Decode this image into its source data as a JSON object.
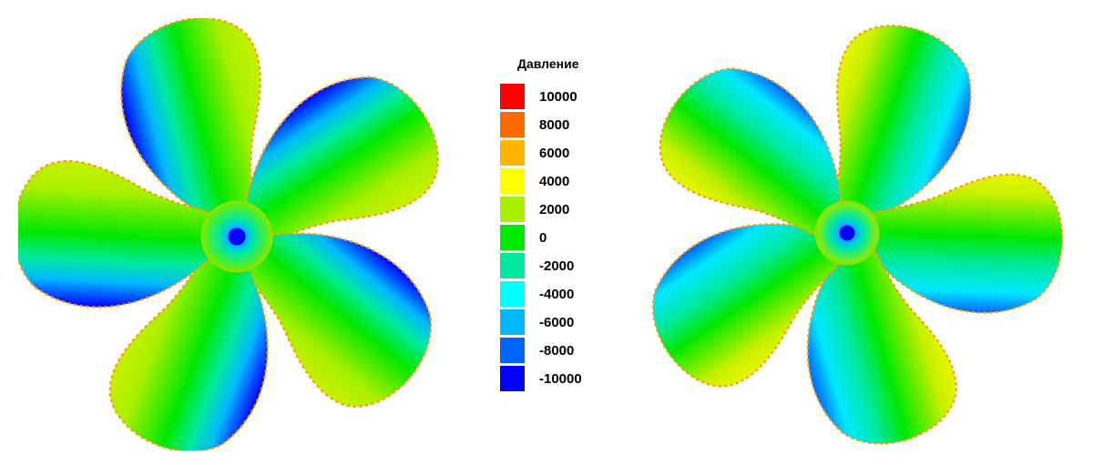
{
  "legend": {
    "title": "Давление",
    "items": [
      {
        "label": "10000",
        "color": "#ff0000"
      },
      {
        "label": "8000",
        "color": "#ff6a00"
      },
      {
        "label": "6000",
        "color": "#ffb400"
      },
      {
        "label": "4000",
        "color": "#ffff00"
      },
      {
        "label": "2000",
        "color": "#a8f000"
      },
      {
        "label": "0",
        "color": "#00e800"
      },
      {
        "label": "-2000",
        "color": "#00e8a0"
      },
      {
        "label": "-4000",
        "color": "#00ffff"
      },
      {
        "label": "-6000",
        "color": "#00b8ff"
      },
      {
        "label": "-8000",
        "color": "#0064ff"
      },
      {
        "label": "-10000",
        "color": "#0000ff"
      }
    ]
  },
  "propellers": [
    {
      "view": "left",
      "blades": 5,
      "rotation_deg": -15
    },
    {
      "view": "right",
      "blades": 5,
      "rotation_deg": 20
    }
  ]
}
